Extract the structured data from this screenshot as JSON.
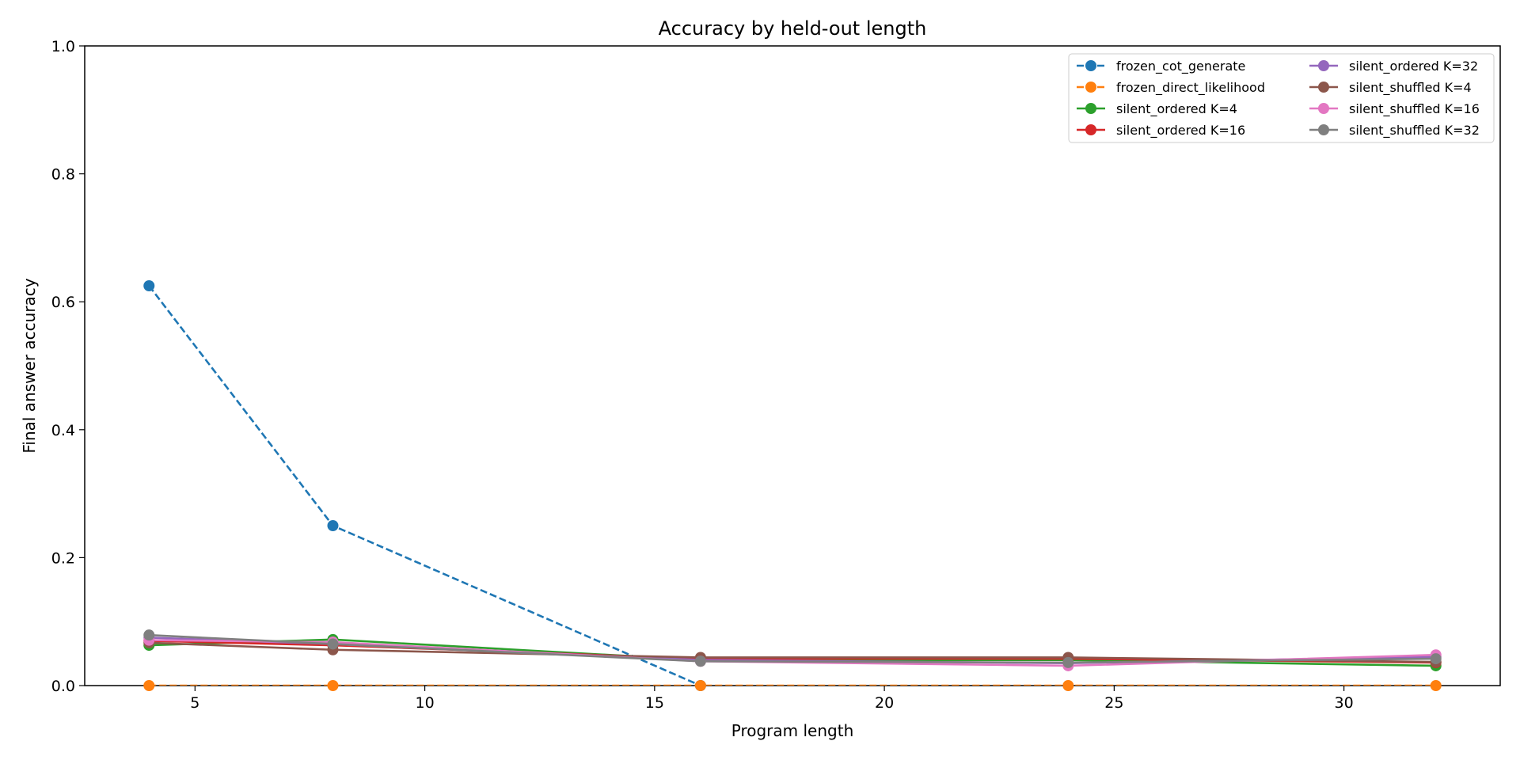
{
  "chart_data": {
    "type": "line",
    "title": "Accuracy by held-out length",
    "xlabel": "Program length",
    "ylabel": "Final answer accuracy",
    "xlim": [
      2.6,
      33.4
    ],
    "ylim": [
      0.0,
      1.0
    ],
    "xticks": [
      5,
      10,
      15,
      20,
      25,
      30
    ],
    "yticks": [
      0.0,
      0.2,
      0.4,
      0.6,
      0.8,
      1.0
    ],
    "ytick_labels": [
      "0.0",
      "0.2",
      "0.4",
      "0.6",
      "0.8",
      "1.0"
    ],
    "grid": false,
    "legend_position": "top-right",
    "legend_columns": 2,
    "x": [
      4,
      8,
      16,
      24,
      32
    ],
    "series": [
      {
        "name": "frozen_cot_generate",
        "color": "#1f77b4",
        "dashed": true,
        "values": [
          0.625,
          0.25,
          0.0,
          null,
          null
        ]
      },
      {
        "name": "frozen_direct_likelihood",
        "color": "#ff7f0e",
        "dashed": true,
        "values": [
          0.0,
          0.0,
          0.0,
          0.0,
          0.0
        ]
      },
      {
        "name": "silent_ordered K=4",
        "color": "#2ca02c",
        "dashed": false,
        "values": [
          0.063,
          0.072,
          0.04,
          0.04,
          0.031
        ]
      },
      {
        "name": "silent_ordered K=16",
        "color": "#d62728",
        "dashed": false,
        "values": [
          0.07,
          0.063,
          0.042,
          0.042,
          0.036
        ]
      },
      {
        "name": "silent_ordered K=32",
        "color": "#9467bd",
        "dashed": false,
        "values": [
          0.075,
          0.065,
          0.04,
          0.035,
          0.045
        ]
      },
      {
        "name": "silent_shuffled K=4",
        "color": "#8c564b",
        "dashed": false,
        "values": [
          0.067,
          0.056,
          0.044,
          0.044,
          0.037
        ]
      },
      {
        "name": "silent_shuffled K=16",
        "color": "#e377c2",
        "dashed": false,
        "values": [
          0.071,
          0.068,
          0.038,
          0.031,
          0.048
        ]
      },
      {
        "name": "silent_shuffled K=32",
        "color": "#7f7f7f",
        "dashed": false,
        "values": [
          0.079,
          0.065,
          0.038,
          0.036,
          0.042
        ]
      }
    ]
  }
}
